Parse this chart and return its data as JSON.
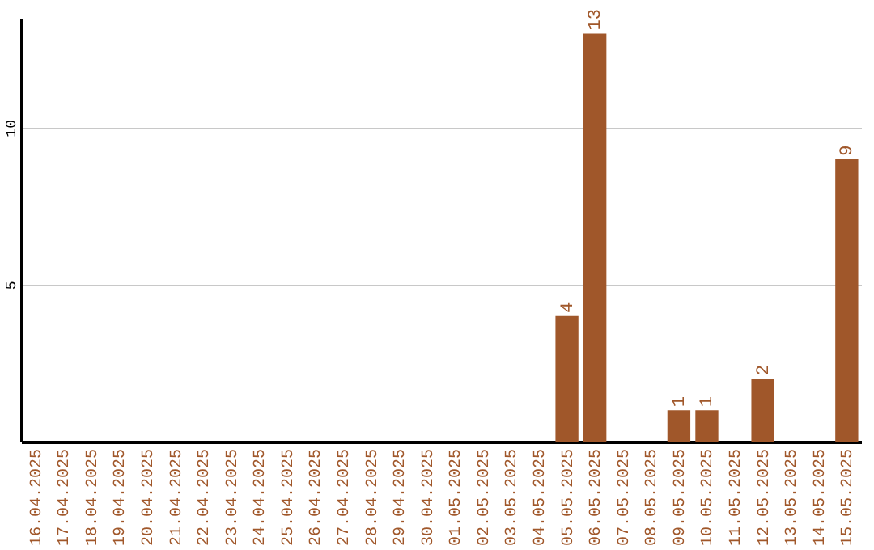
{
  "chart_data": {
    "type": "bar",
    "categories": [
      "16.04.2025",
      "17.04.2025",
      "18.04.2025",
      "19.04.2025",
      "20.04.2025",
      "21.04.2025",
      "22.04.2025",
      "23.04.2025",
      "24.04.2025",
      "25.04.2025",
      "26.04.2025",
      "27.04.2025",
      "28.04.2025",
      "29.04.2025",
      "30.04.2025",
      "01.05.2025",
      "02.05.2025",
      "03.05.2025",
      "04.05.2025",
      "05.05.2025",
      "06.05.2025",
      "07.05.2025",
      "08.05.2025",
      "09.05.2025",
      "10.05.2025",
      "11.05.2025",
      "12.05.2025",
      "13.05.2025",
      "14.05.2025",
      "15.05.2025"
    ],
    "values": [
      0,
      0,
      0,
      0,
      0,
      0,
      0,
      0,
      0,
      0,
      0,
      0,
      0,
      0,
      0,
      0,
      0,
      0,
      0,
      4,
      13,
      0,
      0,
      1,
      1,
      0,
      2,
      0,
      0,
      9
    ],
    "value_labels": [
      null,
      null,
      null,
      null,
      null,
      null,
      null,
      null,
      null,
      null,
      null,
      null,
      null,
      null,
      null,
      null,
      null,
      null,
      null,
      "4",
      "13",
      null,
      null,
      "1",
      "1",
      null,
      "2",
      null,
      null,
      "9"
    ],
    "color": "#a0572a",
    "ylim": [
      0,
      13.5
    ],
    "yticks": [
      5,
      10
    ],
    "grid": "y"
  }
}
